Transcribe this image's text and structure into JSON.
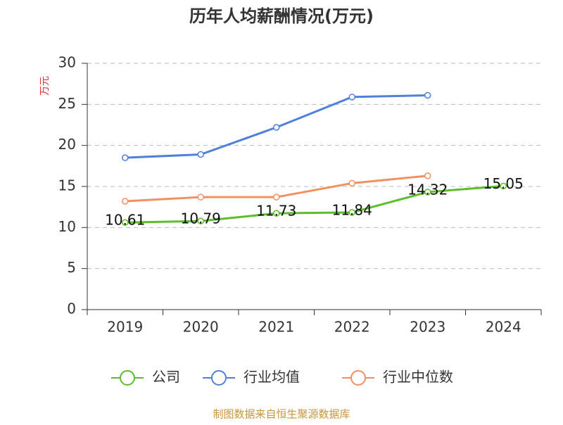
{
  "chart_data": {
    "type": "line",
    "title": "历年人均薪酬情况(万元)",
    "y_label": "万元",
    "source": "制图数据来自恒生聚源数据库",
    "categories": [
      "2019",
      "2020",
      "2021",
      "2022",
      "2023",
      "2024"
    ],
    "series": [
      {
        "name": "公司",
        "color": "#5dbe2c",
        "values": [
          10.61,
          10.79,
          11.73,
          11.84,
          14.32,
          15.05
        ],
        "labels": true
      },
      {
        "name": "行业均值",
        "color": "#4e80dc",
        "values": [
          18.5,
          18.9,
          22.2,
          25.9,
          26.1,
          null
        ]
      },
      {
        "name": "行业中位数",
        "color": "#f39060",
        "values": [
          13.2,
          13.7,
          13.7,
          15.4,
          16.3,
          null
        ]
      }
    ],
    "ylim": [
      0,
      30
    ],
    "yticks": [
      0,
      5,
      10,
      15,
      20,
      25,
      30
    ],
    "grid": true
  }
}
